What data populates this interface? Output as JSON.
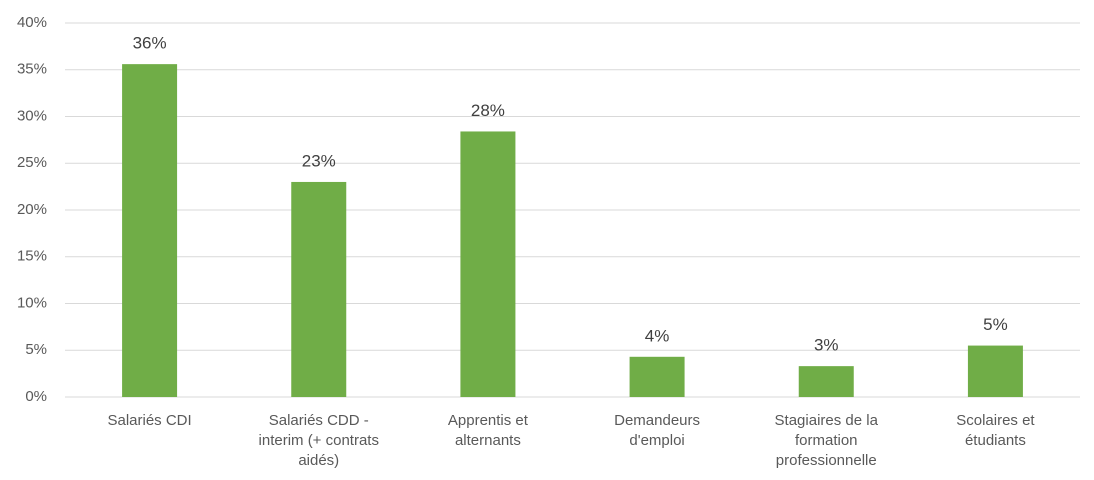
{
  "chart_data": {
    "type": "bar",
    "categories": [
      "Salariés CDI",
      "Salariés CDD -\ninterim (+ contrats\naidés)",
      "Apprentis et\nalternants",
      "Demandeurs\nd'emploi",
      "Stagiaires de la\nformation\nprofessionnelle",
      "Scolaires et\nétudiants"
    ],
    "values": [
      35.6,
      23,
      28.4,
      4.3,
      3.3,
      5.5
    ],
    "value_labels": [
      "36%",
      "23%",
      "28%",
      "4%",
      "3%",
      "5%"
    ],
    "color": "#70ad47",
    "ylim": [
      0,
      40
    ],
    "yticks": [
      {
        "value": 0,
        "label": "0%"
      },
      {
        "value": 5,
        "label": "5%"
      },
      {
        "value": 10,
        "label": "10%"
      },
      {
        "value": 15,
        "label": "15%"
      },
      {
        "value": 20,
        "label": "20%"
      },
      {
        "value": 25,
        "label": "25%"
      },
      {
        "value": 30,
        "label": "30%"
      },
      {
        "value": 35,
        "label": "35%"
      },
      {
        "value": 40,
        "label": "40%"
      }
    ],
    "grid": true
  }
}
